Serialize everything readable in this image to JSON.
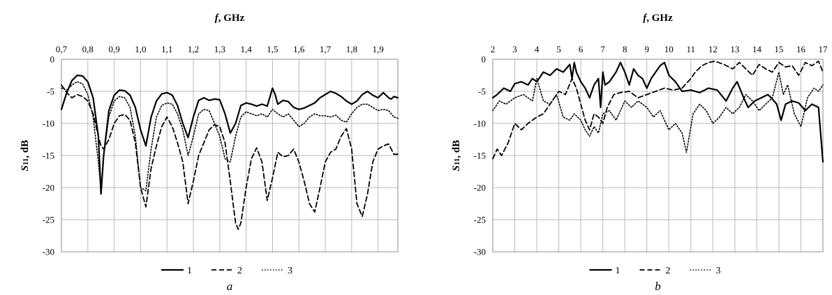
{
  "chart_data": [
    {
      "id": "a",
      "type": "line",
      "panel_label": "a",
      "xlabel_italic": "f",
      "xlabel_rest": ", GHz",
      "xlabel_position": "top",
      "ylabel_italic": "S",
      "ylabel_sub": "11",
      "ylabel_rest": ", dB",
      "xlim": [
        0.7,
        1.975
      ],
      "ylim": [
        -30,
        0
      ],
      "xticks": [
        0.7,
        0.8,
        0.9,
        1.0,
        1.1,
        1.2,
        1.3,
        1.4,
        1.5,
        1.6,
        1.7,
        1.8,
        1.9
      ],
      "xtick_labels": [
        "0,7",
        "0,8",
        "0,9",
        "1,0",
        "1,1",
        "1,2",
        "1,3",
        "1,4",
        "1,5",
        "1,6",
        "1,7",
        "1,8",
        "1,9"
      ],
      "yticks": [
        0,
        -5,
        -10,
        -15,
        -20,
        -25,
        -30
      ],
      "ytick_labels": [
        "0",
        "-5",
        "-10",
        "-15",
        "-20",
        "-25",
        "-30"
      ],
      "grid": true,
      "legend": "bottom",
      "series": [
        {
          "name": "1",
          "style": "solid",
          "x": [
            0.7,
            0.72,
            0.74,
            0.76,
            0.78,
            0.8,
            0.82,
            0.84,
            0.85,
            0.86,
            0.88,
            0.9,
            0.92,
            0.94,
            0.96,
            0.98,
            1.0,
            1.02,
            1.04,
            1.06,
            1.08,
            1.1,
            1.12,
            1.14,
            1.16,
            1.18,
            1.2,
            1.22,
            1.24,
            1.26,
            1.28,
            1.3,
            1.32,
            1.34,
            1.36,
            1.38,
            1.4,
            1.42,
            1.44,
            1.46,
            1.48,
            1.5,
            1.51,
            1.52,
            1.54,
            1.56,
            1.58,
            1.6,
            1.62,
            1.64,
            1.66,
            1.68,
            1.7,
            1.72,
            1.74,
            1.76,
            1.78,
            1.8,
            1.82,
            1.84,
            1.86,
            1.88,
            1.9,
            1.92,
            1.94,
            1.95,
            1.96,
            1.975
          ],
          "y": [
            -7.8,
            -5.2,
            -3.3,
            -2.5,
            -2.6,
            -3.5,
            -6.0,
            -12.0,
            -21.0,
            -15.0,
            -8.0,
            -5.6,
            -4.8,
            -4.9,
            -5.6,
            -7.5,
            -11.0,
            -13.5,
            -9.0,
            -6.5,
            -5.4,
            -5.2,
            -5.6,
            -7.2,
            -10.0,
            -12.2,
            -9.0,
            -6.4,
            -6.0,
            -6.4,
            -6.2,
            -6.3,
            -8.5,
            -11.5,
            -10.0,
            -7.2,
            -6.8,
            -7.0,
            -7.3,
            -7.0,
            -7.3,
            -4.5,
            -5.5,
            -7.0,
            -6.4,
            -6.6,
            -7.5,
            -7.8,
            -7.6,
            -7.2,
            -6.8,
            -6.0,
            -5.5,
            -5.0,
            -5.3,
            -5.8,
            -6.5,
            -7.0,
            -6.5,
            -5.5,
            -5.0,
            -5.6,
            -6.0,
            -5.2,
            -6.0,
            -6.2,
            -5.8,
            -6.0
          ]
        },
        {
          "name": "2",
          "style": "dashed",
          "x": [
            0.7,
            0.72,
            0.74,
            0.76,
            0.78,
            0.8,
            0.82,
            0.84,
            0.85,
            0.86,
            0.88,
            0.9,
            0.92,
            0.94,
            0.96,
            0.98,
            1.0,
            1.02,
            1.04,
            1.06,
            1.08,
            1.1,
            1.12,
            1.14,
            1.16,
            1.18,
            1.2,
            1.22,
            1.24,
            1.26,
            1.28,
            1.3,
            1.32,
            1.34,
            1.36,
            1.37,
            1.38,
            1.4,
            1.42,
            1.44,
            1.46,
            1.48,
            1.5,
            1.52,
            1.54,
            1.56,
            1.58,
            1.6,
            1.62,
            1.64,
            1.66,
            1.68,
            1.7,
            1.72,
            1.74,
            1.76,
            1.78,
            1.8,
            1.82,
            1.84,
            1.86,
            1.88,
            1.9,
            1.92,
            1.94,
            1.96,
            1.975
          ],
          "y": [
            -4.0,
            -5.2,
            -6.0,
            -5.5,
            -5.8,
            -6.5,
            -8.5,
            -12.0,
            -13.5,
            -14.0,
            -12.5,
            -10.0,
            -8.8,
            -8.6,
            -9.5,
            -13.0,
            -20.0,
            -23.0,
            -17.0,
            -13.5,
            -10.5,
            -9.0,
            -10.5,
            -13.0,
            -16.0,
            -22.5,
            -19.0,
            -15.0,
            -13.0,
            -11.0,
            -10.2,
            -10.5,
            -13.0,
            -19.0,
            -25.5,
            -26.5,
            -25.5,
            -20.0,
            -15.5,
            -13.8,
            -16.0,
            -22.0,
            -18.5,
            -14.5,
            -15.2,
            -15.0,
            -14.0,
            -16.0,
            -19.0,
            -22.5,
            -23.8,
            -20.0,
            -16.0,
            -14.5,
            -14.0,
            -12.0,
            -10.8,
            -14.0,
            -22.5,
            -24.5,
            -21.0,
            -16.0,
            -14.0,
            -13.5,
            -13.2,
            -14.8,
            -14.8
          ]
        },
        {
          "name": "3",
          "style": "dotted",
          "x": [
            0.7,
            0.72,
            0.74,
            0.76,
            0.78,
            0.8,
            0.82,
            0.84,
            0.85,
            0.86,
            0.88,
            0.9,
            0.92,
            0.94,
            0.96,
            0.98,
            1.0,
            1.02,
            1.04,
            1.06,
            1.08,
            1.1,
            1.12,
            1.14,
            1.16,
            1.18,
            1.2,
            1.22,
            1.24,
            1.26,
            1.28,
            1.3,
            1.32,
            1.34,
            1.36,
            1.38,
            1.4,
            1.42,
            1.44,
            1.46,
            1.48,
            1.5,
            1.52,
            1.54,
            1.56,
            1.58,
            1.6,
            1.62,
            1.64,
            1.66,
            1.68,
            1.7,
            1.72,
            1.74,
            1.76,
            1.78,
            1.8,
            1.82,
            1.84,
            1.86,
            1.88,
            1.9,
            1.92,
            1.94,
            1.96,
            1.975
          ],
          "y": [
            -4.5,
            -4.8,
            -4.0,
            -3.5,
            -3.8,
            -5.5,
            -9.0,
            -16.0,
            -20.5,
            -15.0,
            -9.0,
            -6.5,
            -5.8,
            -6.0,
            -7.5,
            -12.0,
            -20.0,
            -20.5,
            -14.0,
            -9.0,
            -7.2,
            -6.8,
            -7.0,
            -8.5,
            -11.0,
            -15.0,
            -12.0,
            -8.5,
            -7.8,
            -8.0,
            -10.0,
            -12.0,
            -15.5,
            -16.0,
            -12.0,
            -9.0,
            -8.2,
            -8.5,
            -8.8,
            -8.5,
            -9.0,
            -7.8,
            -8.5,
            -9.0,
            -8.5,
            -9.5,
            -10.5,
            -10.0,
            -9.0,
            -8.5,
            -8.8,
            -8.8,
            -9.0,
            -8.7,
            -9.5,
            -9.8,
            -8.5,
            -7.5,
            -7.0,
            -7.0,
            -7.5,
            -8.0,
            -7.8,
            -8.0,
            -9.0,
            -9.2
          ]
        }
      ]
    },
    {
      "id": "b",
      "type": "line",
      "panel_label": "b",
      "xlabel_italic": "f",
      "xlabel_rest": ", GHz",
      "xlabel_position": "top",
      "ylabel_italic": "S",
      "ylabel_sub": "11",
      "ylabel_rest": ", dB",
      "xlim": [
        2,
        17
      ],
      "ylim": [
        -30,
        0
      ],
      "xticks": [
        2,
        3,
        4,
        5,
        6,
        7,
        8,
        9,
        10,
        11,
        12,
        13,
        14,
        15,
        16,
        17
      ],
      "xtick_labels": [
        "2",
        "3",
        "4",
        "5",
        "6",
        "7",
        "8",
        "9",
        "10",
        "11",
        "12",
        "13",
        "14",
        "15",
        "16",
        "17"
      ],
      "yticks": [
        0,
        -5,
        -10,
        -15,
        -20,
        -25,
        -30
      ],
      "ytick_labels": [
        "0",
        "-5",
        "-10",
        "-15",
        "-20",
        "-25",
        "-30"
      ],
      "grid": true,
      "legend": "bottom",
      "series": [
        {
          "name": "1",
          "style": "solid",
          "x": [
            2,
            2.2,
            2.5,
            2.8,
            3,
            3.3,
            3.6,
            3.8,
            4,
            4.3,
            4.6,
            4.9,
            5.2,
            5.5,
            5.6,
            5.7,
            5.8,
            6,
            6.2,
            6.4,
            6.6,
            6.8,
            6.9,
            7,
            7.1,
            7.3,
            7.6,
            7.8,
            8,
            8.2,
            8.4,
            8.6,
            8.8,
            9,
            9.2,
            9.4,
            9.6,
            9.8,
            10,
            10.3,
            10.6,
            11,
            11.4,
            11.8,
            12.2,
            12.6,
            12.9,
            13.1,
            13.4,
            13.6,
            13.9,
            14.2,
            14.5,
            14.7,
            14.9,
            15.1,
            15.3,
            15.6,
            15.9,
            16.2,
            16.5,
            16.8,
            17
          ],
          "y": [
            -6.0,
            -5.5,
            -4.5,
            -5.0,
            -3.8,
            -3.5,
            -4.0,
            -3.0,
            -3.5,
            -2.0,
            -2.5,
            -1.5,
            -2.0,
            -0.8,
            -3.0,
            -0.5,
            -2.0,
            -3.5,
            -4.5,
            -6.0,
            -4.0,
            -3.0,
            -7.5,
            -2.0,
            -4.0,
            -3.5,
            -2.0,
            -0.5,
            -2.0,
            -4.0,
            -1.5,
            -2.5,
            -3.0,
            -4.5,
            -3.0,
            -2.0,
            -1.0,
            -0.5,
            -2.5,
            -3.5,
            -5.0,
            -4.8,
            -5.2,
            -4.5,
            -4.8,
            -6.5,
            -4.5,
            -3.5,
            -6.0,
            -7.5,
            -6.5,
            -6.0,
            -5.5,
            -6.2,
            -7.0,
            -9.5,
            -7.0,
            -6.5,
            -6.8,
            -8.0,
            -7.0,
            -7.5,
            -16.0
          ]
        },
        {
          "name": "2",
          "style": "dashed",
          "x": [
            2,
            2.2,
            2.4,
            2.7,
            3,
            3.3,
            3.6,
            4,
            4.3,
            4.6,
            5,
            5.3,
            5.6,
            5.8,
            6,
            6.2,
            6.4,
            6.6,
            6.8,
            7,
            7.2,
            7.5,
            7.8,
            8.2,
            8.6,
            9,
            9.4,
            9.8,
            10.2,
            10.6,
            11,
            11.2,
            11.5,
            11.8,
            12.1,
            12.5,
            12.9,
            13.2,
            13.5,
            13.8,
            14.1,
            14.4,
            14.7,
            15,
            15.3,
            15.6,
            15.9,
            16.2,
            16.5,
            16.8,
            17
          ],
          "y": [
            -15.5,
            -14.0,
            -15.0,
            -13.0,
            -10.0,
            -11.0,
            -10.0,
            -9.0,
            -8.5,
            -7.0,
            -5.0,
            -5.5,
            -3.0,
            -4.5,
            -7.0,
            -9.5,
            -11.0,
            -8.5,
            -9.0,
            -10.0,
            -7.5,
            -5.5,
            -5.2,
            -5.0,
            -6.0,
            -5.5,
            -5.0,
            -4.5,
            -4.8,
            -4.5,
            -3.0,
            -2.0,
            -1.0,
            -0.5,
            -0.3,
            -0.8,
            -1.5,
            -0.5,
            -1.5,
            -2.5,
            -0.8,
            -1.5,
            -2.0,
            -0.5,
            -1.2,
            -1.0,
            -2.5,
            -0.5,
            -1.0,
            -0.3,
            -2.0
          ]
        },
        {
          "name": "3",
          "style": "dotted",
          "x": [
            2,
            2.3,
            2.6,
            3,
            3.4,
            3.8,
            4,
            4.3,
            4.6,
            4.9,
            5.2,
            5.5,
            5.7,
            6,
            6.2,
            6.4,
            6.6,
            6.8,
            7,
            7.3,
            7.6,
            8,
            8.3,
            8.6,
            9,
            9.3,
            9.6,
            10,
            10.3,
            10.6,
            10.8,
            11.1,
            11.4,
            11.7,
            12,
            12.3,
            12.6,
            12.9,
            13.2,
            13.5,
            13.8,
            14.1,
            14.4,
            14.7,
            15,
            15.2,
            15.4,
            15.7,
            16,
            16.3,
            16.6,
            16.8,
            17
          ],
          "y": [
            -8.0,
            -6.5,
            -7.0,
            -6.0,
            -5.5,
            -6.5,
            -3.0,
            -6.5,
            -7.0,
            -5.5,
            -9.0,
            -9.5,
            -8.5,
            -9.5,
            -11.0,
            -12.0,
            -10.5,
            -11.5,
            -8.5,
            -8.0,
            -9.5,
            -6.5,
            -7.5,
            -6.5,
            -7.5,
            -9.0,
            -8.0,
            -11.0,
            -10.0,
            -11.5,
            -14.5,
            -8.5,
            -7.0,
            -8.0,
            -10.0,
            -9.0,
            -7.5,
            -8.5,
            -7.5,
            -5.5,
            -6.5,
            -8.0,
            -7.0,
            -6.0,
            -2.0,
            -5.5,
            -4.0,
            -8.5,
            -10.5,
            -6.0,
            -4.5,
            -5.0,
            -4.0
          ]
        }
      ]
    }
  ]
}
